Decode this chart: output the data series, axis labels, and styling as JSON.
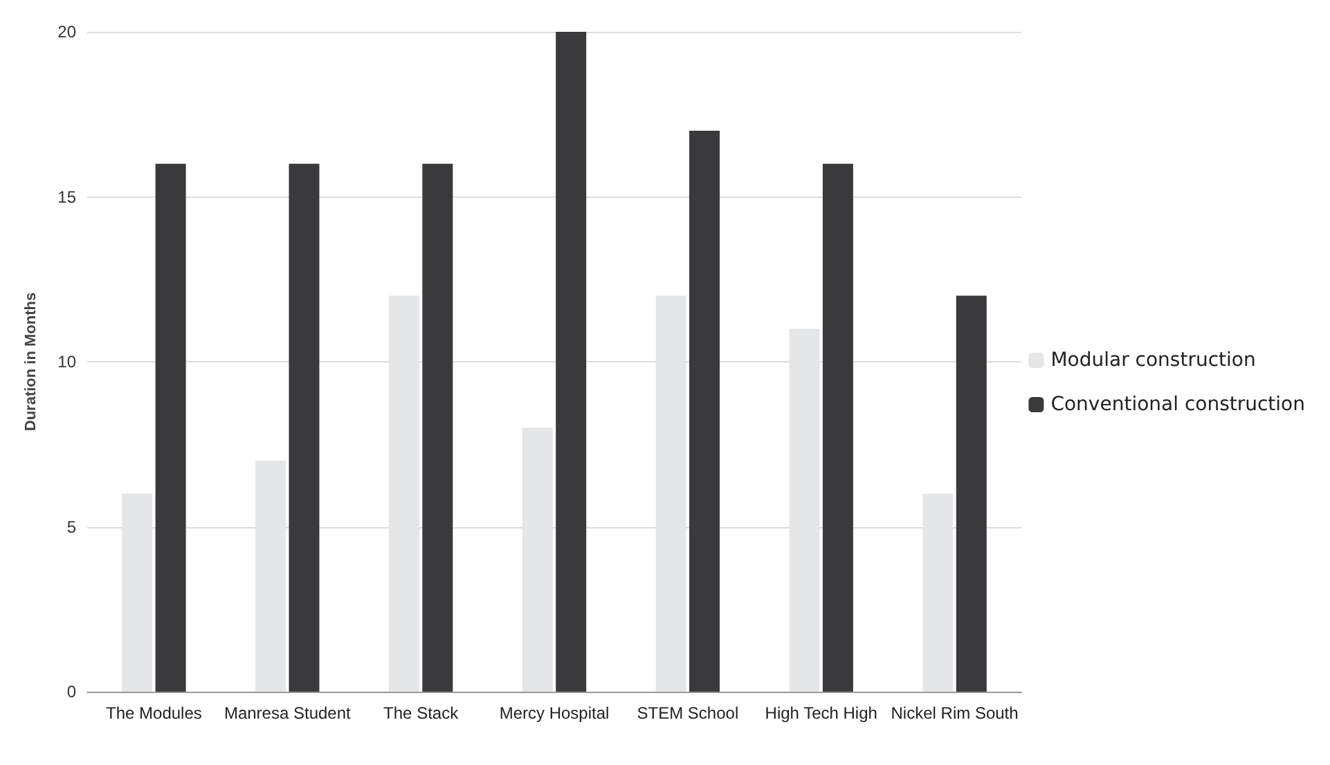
{
  "chart_data": {
    "type": "bar",
    "ylabel": "Duration in Months",
    "categories": [
      "The Modules",
      "Manresa Student",
      "The Stack",
      "Mercy Hospital",
      "STEM School",
      "High Tech High",
      "Nickel Rim South"
    ],
    "series": [
      {
        "name": "Modular construction",
        "color": "#e4e6e8",
        "values": [
          6,
          7,
          12,
          8,
          12,
          11,
          6
        ]
      },
      {
        "name": "Conventional construction",
        "color": "#3a3a3c",
        "values": [
          16,
          16,
          16,
          20,
          17,
          16,
          12
        ]
      }
    ],
    "ylim": [
      0,
      20
    ],
    "yticks": [
      0,
      5,
      10,
      15,
      20
    ],
    "grid": "y",
    "legend": "right"
  }
}
